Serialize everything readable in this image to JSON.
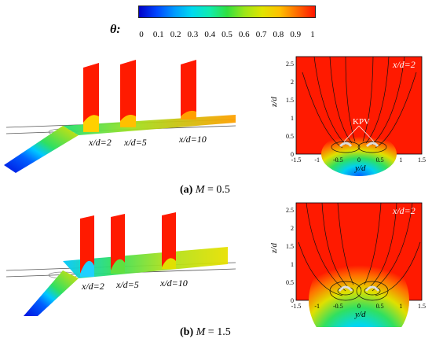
{
  "colorbar": {
    "symbol": "θ:",
    "ticks": [
      "0",
      "0.1",
      "0.2",
      "0.3",
      "0.4",
      "0.5",
      "0.6",
      "0.7",
      "0.8",
      "0.9",
      "1"
    ]
  },
  "panel_a": {
    "caption_letter": "(a)",
    "caption_var": "M",
    "caption_value": " = 0.5",
    "plane_labels": [
      "x/d=2",
      "x/d=5",
      "x/d=10"
    ],
    "contour": {
      "inset_label": "x/d=2",
      "annotation": "KPV",
      "xlabel": "y/d",
      "ylabel": "z/d",
      "xticks": [
        "-1.5",
        "-1",
        "-0.5",
        "0",
        "0.5",
        "1",
        "1.5"
      ],
      "yticks": [
        "0",
        "0.5",
        "1",
        "1.5",
        "2",
        "2.5"
      ]
    }
  },
  "panel_b": {
    "caption_letter": "(b)",
    "caption_var": "M",
    "caption_value": " = 1.5",
    "plane_labels": [
      "x/d=2",
      "x/d=5",
      "x/d=10"
    ],
    "contour": {
      "inset_label": "x/d=2",
      "xlabel": "y/d",
      "ylabel": "z/d",
      "xticks": [
        "-1.5",
        "-1",
        "-0.5",
        "0",
        "0.5",
        "1",
        "1.5"
      ],
      "yticks": [
        "0",
        "0.5",
        "1",
        "1.5",
        "2",
        "2.5"
      ]
    }
  }
}
